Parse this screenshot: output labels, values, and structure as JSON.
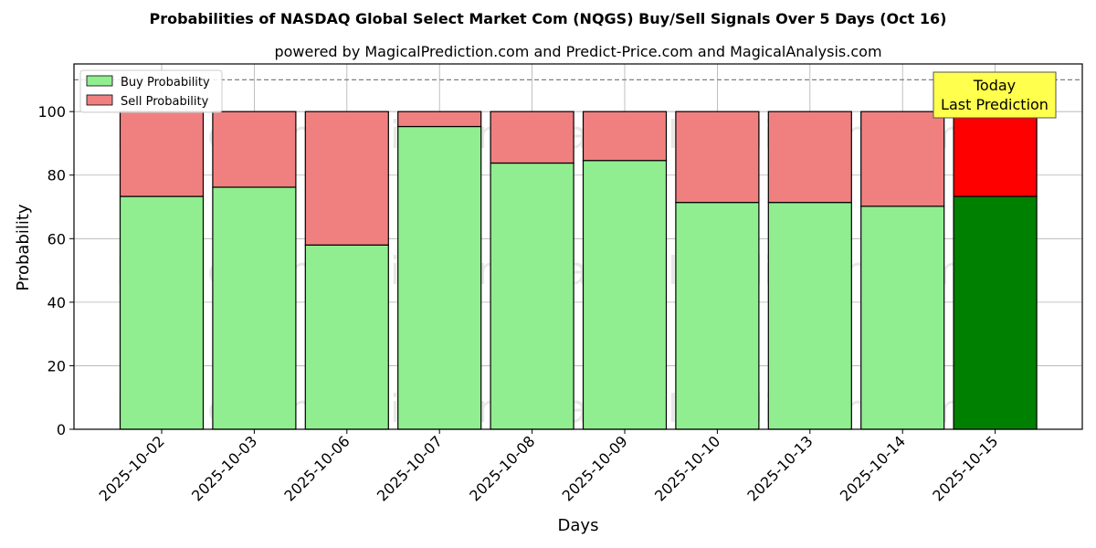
{
  "chart_data": {
    "type": "bar",
    "stacked": true,
    "title": "Probabilities of NASDAQ Global Select Market Com (NQGS) Buy/Sell Signals Over 5 Days (Oct 16)",
    "subtitle": "powered by MagicalPrediction.com and Predict-Price.com and MagicalAnalysis.com",
    "xlabel": "Days",
    "ylabel": "Probability",
    "ylim": [
      0,
      115
    ],
    "yticks": [
      0,
      20,
      40,
      60,
      80,
      100
    ],
    "grid": true,
    "legend_position": "top-left",
    "reference_line": 110,
    "categories": [
      "2025-10-02",
      "2025-10-03",
      "2025-10-06",
      "2025-10-07",
      "2025-10-08",
      "2025-10-09",
      "2025-10-10",
      "2025-10-13",
      "2025-10-14",
      "2025-10-15"
    ],
    "series": [
      {
        "name": "Buy Probability",
        "values": [
          73.3,
          76.2,
          58.0,
          95.3,
          83.8,
          84.6,
          71.4,
          71.4,
          70.2,
          73.3
        ],
        "color": "#90ee90",
        "highlight_color": "#008000"
      },
      {
        "name": "Sell Probability",
        "values": [
          26.7,
          23.8,
          42.0,
          4.7,
          16.2,
          15.4,
          28.6,
          28.6,
          29.8,
          26.7
        ],
        "color": "#f08080",
        "highlight_color": "#ff0000"
      }
    ],
    "highlight_index": 9,
    "annotation": {
      "line1": "Today",
      "line2": "Last Prediction",
      "color": "#ffff4d"
    },
    "watermarks": [
      "MagicalAnalysis.com",
      "MagicalPrediction.com",
      "MagicalAnalysis.com",
      "MagicalPrediction.com",
      "MagicalAnalysis.com",
      "MagicalPrediction.com"
    ]
  }
}
